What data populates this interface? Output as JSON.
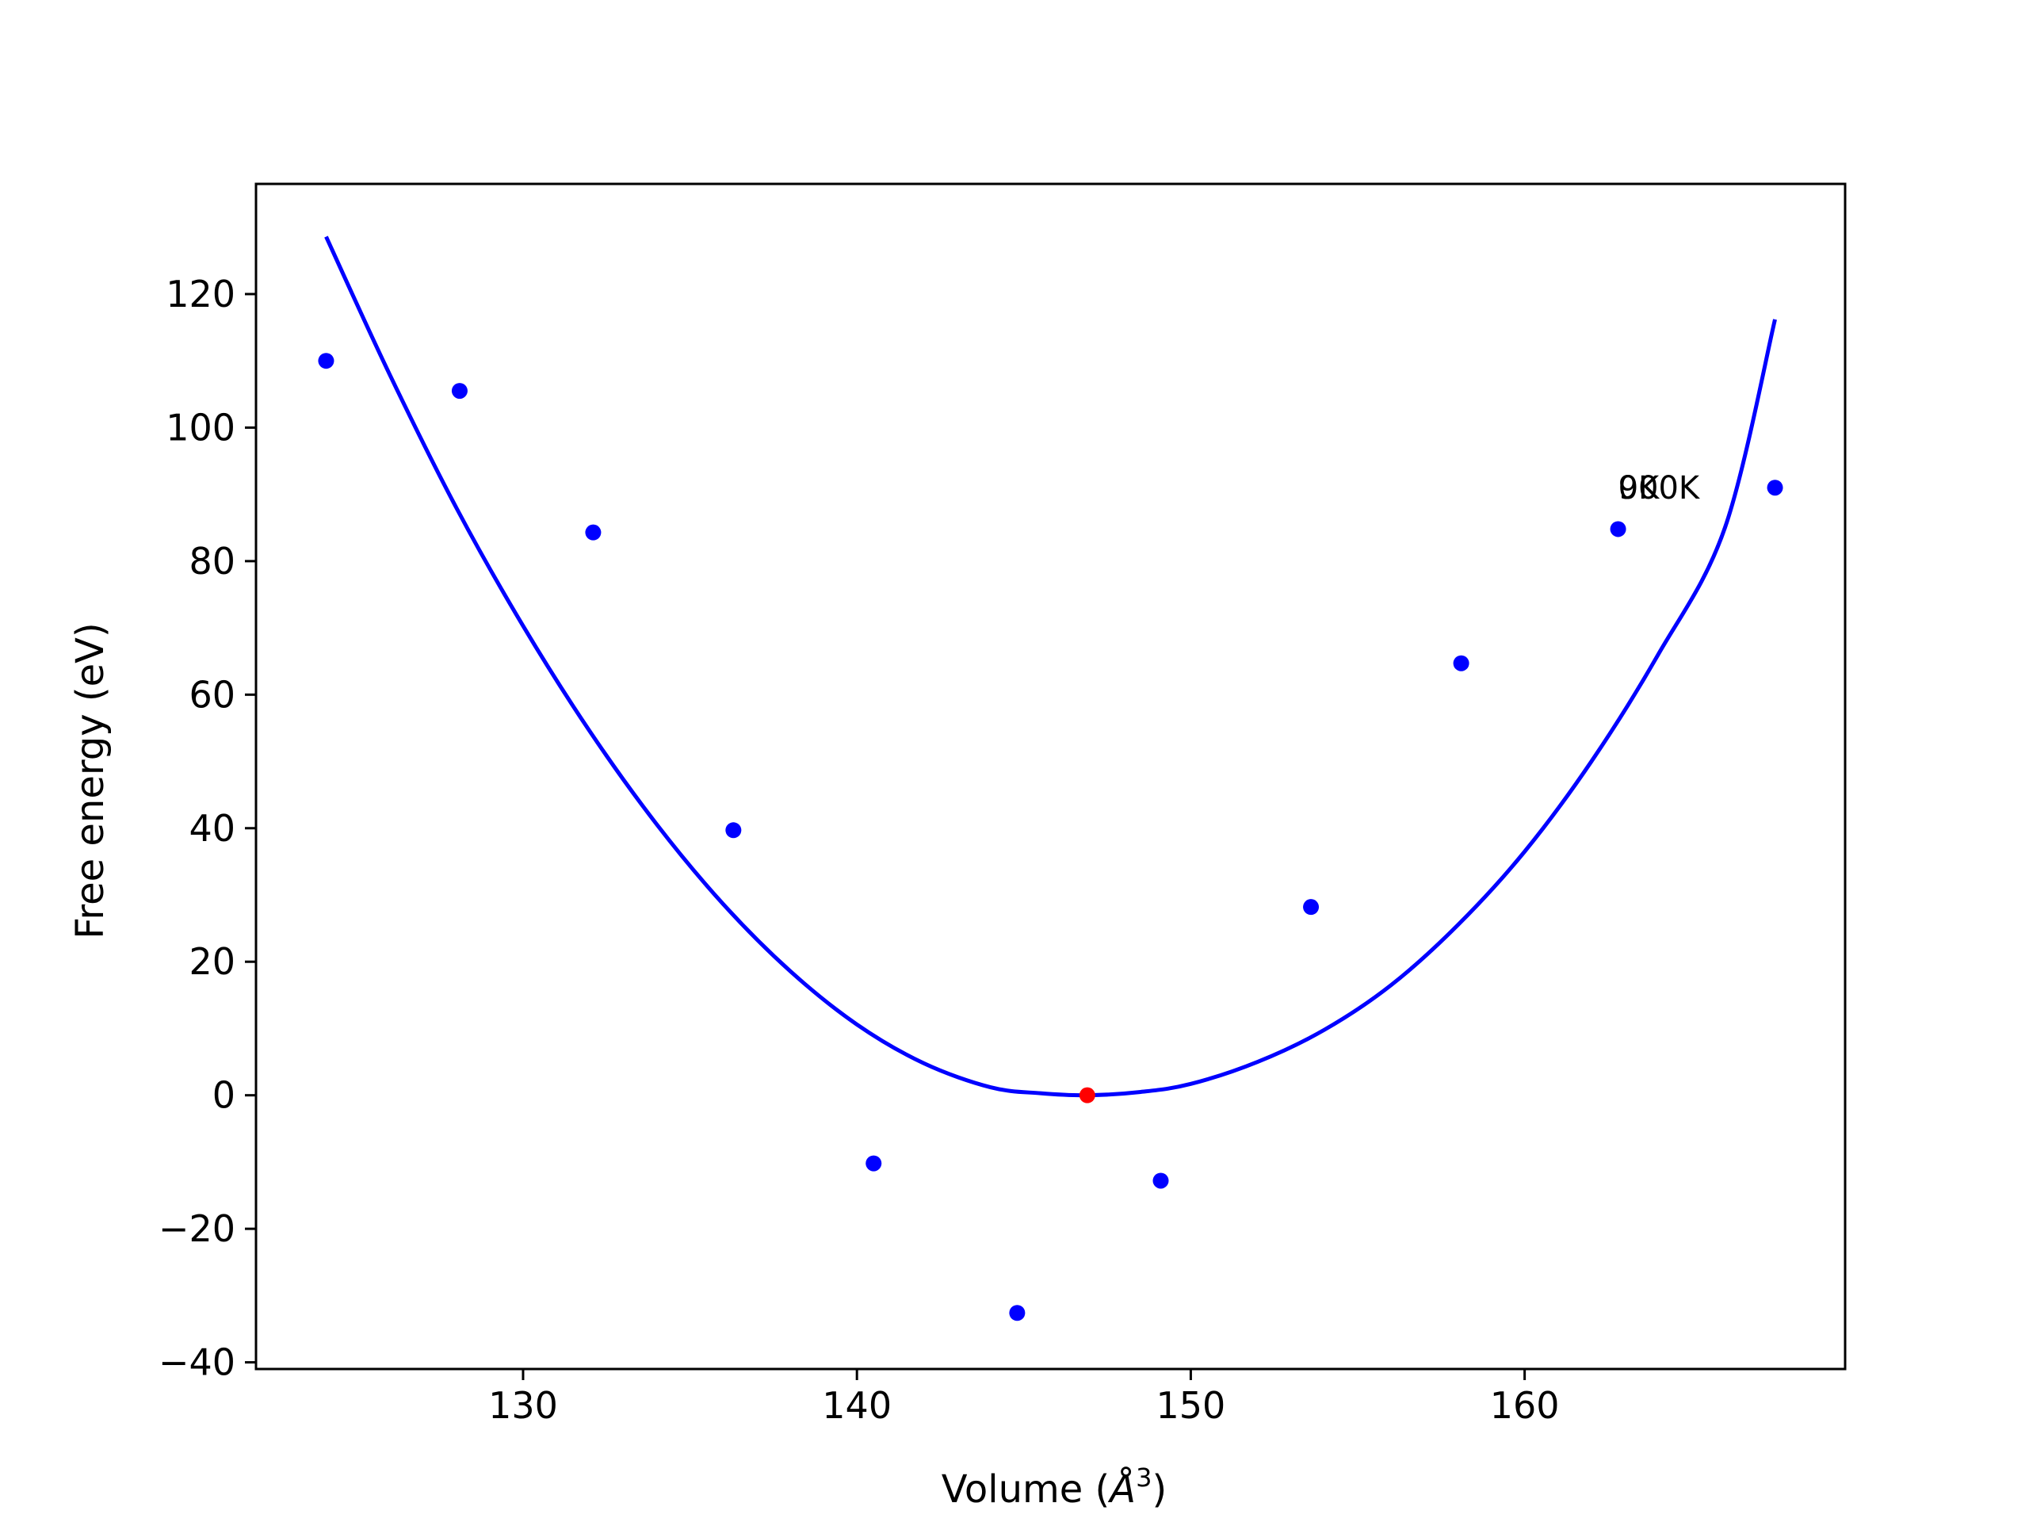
{
  "chart_data": {
    "type": "scatter",
    "title": "",
    "xlabel": "Volume (Å³)",
    "xlabel_parts": {
      "prefix": "Volume (",
      "unit": "Å",
      "exponent": "3",
      "suffix": ")"
    },
    "ylabel": "Free energy (eV)",
    "xlim": [
      122,
      169.6
    ],
    "ylim": [
      -41,
      136.5
    ],
    "x_ticks": [
      130,
      140,
      150,
      160
    ],
    "y_ticks": [
      -40,
      -20,
      0,
      20,
      40,
      60,
      80,
      100,
      120
    ],
    "x_tick_labels": [
      "130",
      "140",
      "150",
      "160"
    ],
    "y_tick_labels": [
      "−40",
      "−20",
      "0",
      "20",
      "40",
      "60",
      "80",
      "100",
      "120"
    ],
    "grid": false,
    "colors": {
      "points": "#0000ff",
      "fit": "#0000ff",
      "minimum": "#ff0000",
      "axes": "#000000"
    },
    "series": [
      {
        "kind": "points",
        "color": "#0000ff",
        "x": [
          124.1,
          128.1,
          132.1,
          136.3,
          140.5,
          144.8,
          149.1,
          153.6,
          158.1,
          162.8,
          167.5
        ],
        "y": [
          110.0,
          105.5,
          84.3,
          39.7,
          -10.2,
          -32.6,
          -12.8,
          28.2,
          64.7,
          84.8,
          91.0
        ]
      },
      {
        "kind": "fit",
        "color": "#0000ff",
        "x": [
          124.1,
          126.0,
          128.0,
          130.0,
          132.0,
          134.0,
          136.0,
          138.0,
          140.0,
          142.0,
          144.0,
          145.5,
          146.9,
          148.5,
          150.0,
          152.0,
          154.0,
          156.0,
          158.0,
          160.0,
          162.0,
          164.0,
          166.0,
          167.5
        ],
        "y": [
          128.6,
          108.0,
          88.0,
          70.3,
          54.5,
          40.6,
          28.6,
          18.6,
          10.6,
          4.8,
          1.2,
          0.3,
          0.0,
          0.5,
          1.7,
          5.0,
          9.8,
          16.5,
          25.5,
          36.5,
          50.0,
          66.0,
          85.0,
          116.2
        ]
      },
      {
        "kind": "minimum",
        "color": "#ff0000",
        "x": [
          146.9
        ],
        "y": [
          0.0
        ]
      }
    ],
    "annotations": [
      {
        "text": "0K",
        "x": 162.8,
        "y": 91.0
      },
      {
        "text": "900K",
        "x": 162.8,
        "y": 91.0
      }
    ]
  }
}
